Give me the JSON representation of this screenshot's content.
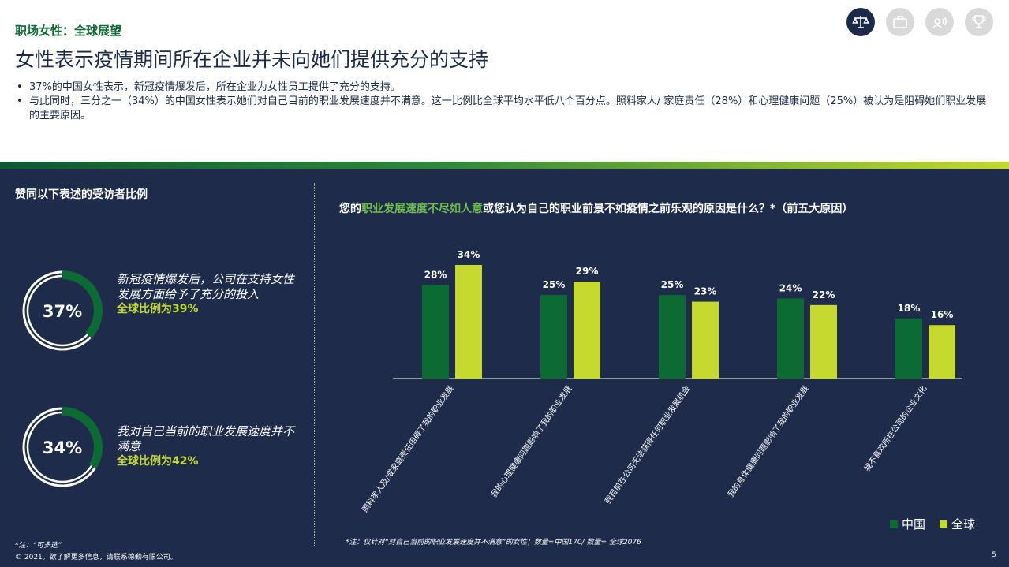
{
  "header": {
    "kicker": "职场女性：全球展望",
    "title": "女性表示疫情期间所在企业并未向她们提供充分的支持",
    "bullets": [
      "37%的中国女性表示，新冠疫情爆发后，所在企业为女性员工提供了充分的支持。",
      "与此同时，三分之一（34%）的中国女性表示她们对自己目前的职业发展速度并不满意。这一比例比全球平均水平低八个百分点。照料家人/ 家庭责任（28%）和心理健康问题（25%）被认为是阻碍她们职业发展的主要原因。"
    ]
  },
  "nav_icons": [
    "scales-icon",
    "briefcase-icon",
    "speech-icon",
    "trophy-icon"
  ],
  "left": {
    "heading": "赞同以下表述的受访者比例",
    "donuts": [
      {
        "value_label": "37%",
        "value": 37,
        "text": "新冠疫情爆发后，公司在支持女性发展方面给予了充分的投入",
        "global": "全球比例为39%"
      },
      {
        "value_label": "34%",
        "value": 34,
        "text": "我对自己当前的职业发展速度并不满意",
        "global": "全球比例为42%"
      }
    ],
    "note": "*注：“可多选”"
  },
  "footer": {
    "copyright": "© 2021。欲了解更多信息，请联系德勤有限公司。",
    "page": "5"
  },
  "chart_data": {
    "type": "bar",
    "title_pre": "您的",
    "title_highlight": "职业发展速度不尽如人意",
    "title_post": "或您认为自己的职业前景不如疫情之前乐观的原因是什么？*（前五大原因）",
    "categories": [
      "照料家人及/或家庭责任阻碍了我的职业发展",
      "我的心理健康问题影响了我的职业发展",
      "我目前在公司无法获得任何职业发展机会",
      "我的身体健康问题影响了我的职业发展",
      "我不喜欢所在公司的企业文化"
    ],
    "series": [
      {
        "name": "中国",
        "values": [
          28,
          25,
          25,
          24,
          18
        ],
        "color": "#0b6b33"
      },
      {
        "name": "全球",
        "values": [
          34,
          29,
          23,
          22,
          16
        ],
        "color": "#c6d92e"
      }
    ],
    "ylim": [
      0,
      34
    ],
    "legend": "bottom-right",
    "note": "*注：仅针对“对自己当前的职业发展速度并不满意”的女性；数量=中国170/ 数量= 全球2076"
  },
  "colors": {
    "navy": "#1e2b4a",
    "dark_green": "#0b6b33",
    "lime": "#c6d92e",
    "ring_base": "#ffffff"
  }
}
